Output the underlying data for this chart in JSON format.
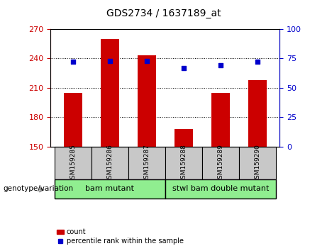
{
  "title": "GDS2734 / 1637189_at",
  "samples": [
    "GSM159285",
    "GSM159286",
    "GSM159287",
    "GSM159288",
    "GSM159289",
    "GSM159290"
  ],
  "counts": [
    205,
    260,
    243,
    168,
    205,
    218
  ],
  "percentile_ranks": [
    72,
    73,
    73,
    67,
    69,
    72
  ],
  "ylim_left": [
    150,
    270
  ],
  "ylim_right": [
    0,
    100
  ],
  "yticks_left": [
    150,
    180,
    210,
    240,
    270
  ],
  "yticks_right": [
    0,
    25,
    50,
    75,
    100
  ],
  "groups": [
    {
      "label": "bam mutant",
      "color": "#90EE90",
      "start": 0,
      "end": 2
    },
    {
      "label": "stwl bam double mutant",
      "color": "#90EE90",
      "start": 3,
      "end": 5
    }
  ],
  "bar_color": "#CC0000",
  "dot_color": "#0000CC",
  "bar_width": 0.5,
  "grid_color": "black",
  "left_axis_color": "#CC0000",
  "right_axis_color": "#0000CC",
  "sample_box_color": "#C8C8C8",
  "genotype_label": "genotype/variation",
  "legend_count_label": "count",
  "legend_percentile_label": "percentile rank within the sample"
}
